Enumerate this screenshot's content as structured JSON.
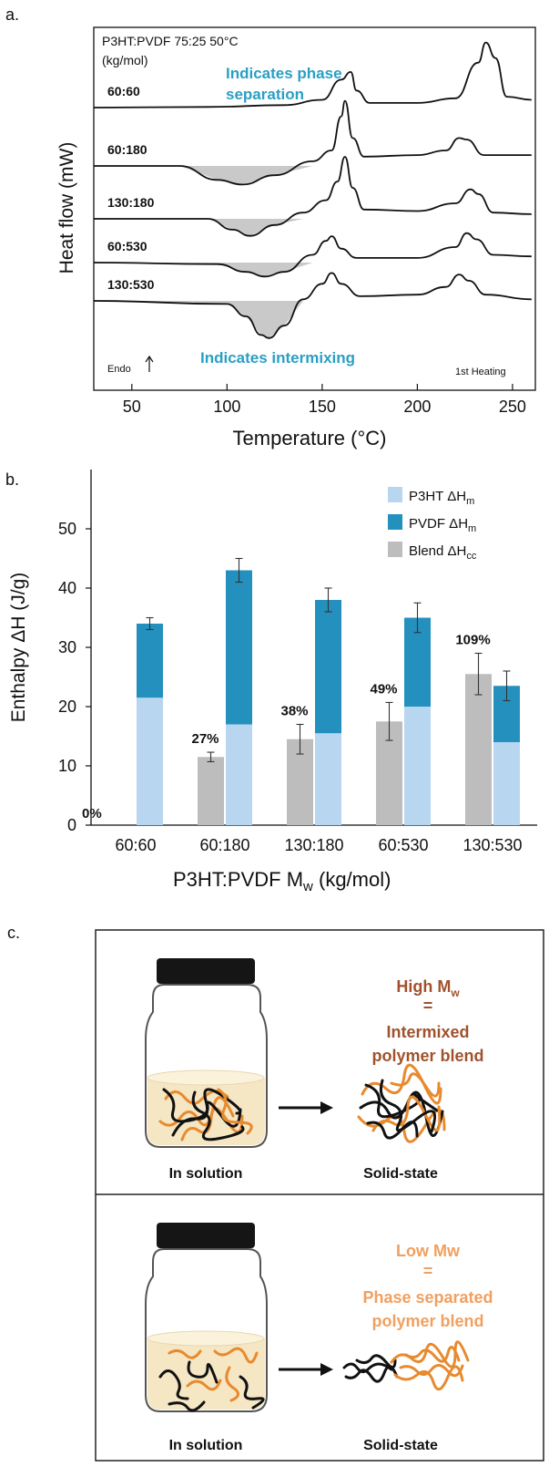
{
  "chart_data": [
    {
      "panel": "a.",
      "type": "line",
      "title": "P3HT:PVDF 75:25 50°C",
      "legend_unit": "(kg/mol)",
      "xlabel": "Temperature (°C)",
      "ylabel": "Heat flow (mW)",
      "xlim": [
        30,
        262
      ],
      "xticks": [
        50,
        100,
        150,
        200,
        250
      ],
      "annotations": [
        "Indicates phase separation",
        "Indicates intermixing",
        "Endo",
        "1st Heating"
      ],
      "series": [
        {
          "name": "60:60",
          "points": [
            [
              30,
              0
            ],
            [
              90,
              0.02
            ],
            [
              130,
              0.08
            ],
            [
              150,
              0.25
            ],
            [
              160,
              0.9
            ],
            [
              165,
              1.15
            ],
            [
              168,
              0.55
            ],
            [
              175,
              0.15
            ],
            [
              200,
              0.15
            ],
            [
              220,
              0.3
            ],
            [
              232,
              1.45
            ],
            [
              236,
              2.1
            ],
            [
              241,
              1.6
            ],
            [
              247,
              0.35
            ],
            [
              260,
              0.25
            ]
          ]
        },
        {
          "name": "60:180",
          "points": [
            [
              30,
              0
            ],
            [
              75,
              0
            ],
            [
              95,
              -0.45
            ],
            [
              108,
              -0.6
            ],
            [
              125,
              -0.3
            ],
            [
              145,
              0.15
            ],
            [
              155,
              0.5
            ],
            [
              160,
              1.6
            ],
            [
              162,
              2.1
            ],
            [
              166,
              0.9
            ],
            [
              172,
              0.3
            ],
            [
              200,
              0.35
            ],
            [
              215,
              0.5
            ],
            [
              222,
              0.9
            ],
            [
              226,
              0.85
            ],
            [
              235,
              0.35
            ],
            [
              260,
              0.35
            ]
          ]
        },
        {
          "name": "130:180",
          "points": [
            [
              30,
              0
            ],
            [
              90,
              0
            ],
            [
              103,
              -0.35
            ],
            [
              112,
              -0.55
            ],
            [
              125,
              -0.2
            ],
            [
              140,
              0.2
            ],
            [
              152,
              0.6
            ],
            [
              158,
              1.2
            ],
            [
              162,
              2.0
            ],
            [
              166,
              1.0
            ],
            [
              172,
              0.3
            ],
            [
              200,
              0.25
            ],
            [
              220,
              0.5
            ],
            [
              228,
              0.95
            ],
            [
              232,
              0.8
            ],
            [
              240,
              0.2
            ],
            [
              260,
              0.15
            ]
          ]
        },
        {
          "name": "60:530",
          "points": [
            [
              30,
              0
            ],
            [
              95,
              -0.05
            ],
            [
              110,
              -0.3
            ],
            [
              120,
              -0.45
            ],
            [
              130,
              -0.3
            ],
            [
              145,
              0.25
            ],
            [
              152,
              0.7
            ],
            [
              155,
              0.85
            ],
            [
              160,
              0.45
            ],
            [
              168,
              0.15
            ],
            [
              200,
              0.15
            ],
            [
              220,
              0.5
            ],
            [
              226,
              0.95
            ],
            [
              231,
              0.75
            ],
            [
              240,
              0.25
            ],
            [
              260,
              0.2
            ]
          ]
        },
        {
          "name": "130:530",
          "points": [
            [
              30,
              0
            ],
            [
              100,
              -0.1
            ],
            [
              110,
              -0.5
            ],
            [
              118,
              -1.1
            ],
            [
              122,
              -1.2
            ],
            [
              130,
              -0.8
            ],
            [
              140,
              0.05
            ],
            [
              150,
              0.55
            ],
            [
              155,
              0.9
            ],
            [
              160,
              0.55
            ],
            [
              170,
              0.15
            ],
            [
              200,
              0.2
            ],
            [
              215,
              0.45
            ],
            [
              222,
              0.85
            ],
            [
              227,
              0.65
            ],
            [
              236,
              0.2
            ],
            [
              260,
              0.05
            ]
          ]
        }
      ]
    },
    {
      "panel": "b.",
      "type": "bar",
      "xlabel": "P3HT:PVDF Mw (kg/mol)",
      "ylabel": "Enthalpy ΔH (J/g)",
      "ylim": [
        0,
        60
      ],
      "yticks": [
        0,
        10,
        20,
        30,
        40,
        50
      ],
      "categories": [
        "60:60",
        "60:180",
        "130:180",
        "60:530",
        "130:530"
      ],
      "series": [
        {
          "name": "P3HT ΔHm",
          "color": "#b8d6ef",
          "values": [
            21.5,
            17,
            15.5,
            20,
            14
          ]
        },
        {
          "name": "PVDF ΔHm",
          "color": "#2390bd",
          "values": [
            12.5,
            26,
            22.5,
            15,
            9.5
          ]
        },
        {
          "name": "Blend ΔHcc",
          "color": "#bdbdbd",
          "values": [
            0,
            11.5,
            14.5,
            17.5,
            25.5
          ]
        }
      ],
      "totals": [
        34,
        43,
        38,
        35,
        23.5
      ],
      "total_errors": [
        1,
        2,
        2,
        2.5,
        2.5
      ],
      "blend_errors": [
        0,
        0.8,
        2.5,
        3.2,
        3.5
      ],
      "percent_labels": [
        "0%",
        "27%",
        "38%",
        "49%",
        "109%"
      ]
    }
  ],
  "panel_c": {
    "label": "c.",
    "top": {
      "title_line1": "High M",
      "title_sub": "w",
      "eq": "=",
      "line2": "Intermixed",
      "line3": "polymer blend",
      "left_caption": "In solution",
      "right_caption": "Solid-state"
    },
    "bottom": {
      "title_line1": "Low Mw",
      "eq": "=",
      "line2": "Phase separated",
      "line3": "polymer blend",
      "left_caption": "In solution",
      "right_caption": "Solid-state"
    },
    "colors": {
      "high": "#a0522d",
      "low": "#f0a060",
      "orange": "#e88a2e",
      "black": "#111111"
    }
  }
}
